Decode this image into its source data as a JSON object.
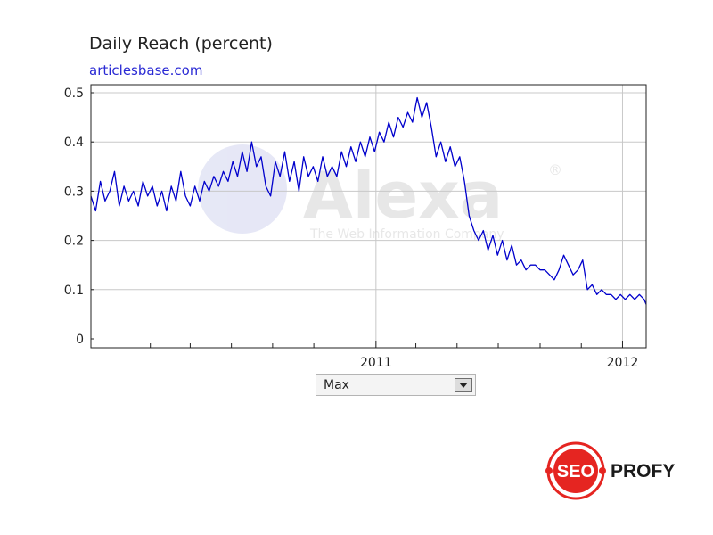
{
  "header": {
    "title": "Daily Reach (percent)",
    "site": "articlesbase.com"
  },
  "watermark": {
    "name": "Alexa",
    "reg_mark": "®",
    "tagline": "The Web Information Company"
  },
  "controls": {
    "range_value": "Max",
    "range_arrow_icon": "chevron-down-icon"
  },
  "brand": {
    "badge_text": "SEO",
    "name": "PROFY",
    "colors": {
      "red": "#e52521",
      "text": "#1a1a1a"
    }
  },
  "colors": {
    "line": "#0000cc",
    "grid": "#c8c8c8",
    "axis": "#222222"
  },
  "chart_data": {
    "type": "line",
    "title": "Daily Reach (percent)",
    "subtitle": "articlesbase.com",
    "xlabel": "",
    "ylabel": "",
    "xlim": [
      "2009-11-05",
      "2012-02-05"
    ],
    "ylim": [
      0,
      0.5
    ],
    "y_ticks": [
      0,
      0.1,
      0.2,
      0.3,
      0.4,
      0.5
    ],
    "y_tick_labels": [
      "0",
      "0.1",
      "0.2",
      "0.3",
      "0.4",
      "0.5"
    ],
    "x_major_ticks": [
      {
        "label": "2011",
        "date": "2011-01-01"
      },
      {
        "label": "2012",
        "date": "2012-01-01"
      }
    ],
    "x_minor_ticks": [
      "2010-02-01",
      "2010-04-01",
      "2010-06-01",
      "2010-08-01",
      "2010-10-01",
      "2011-03-01",
      "2011-05-01",
      "2011-07-01",
      "2011-09-01",
      "2011-11-01"
    ],
    "grid": true,
    "legend": "none",
    "series": [
      {
        "name": "",
        "points": [
          [
            "2009-11-05",
            0.29
          ],
          [
            "2009-11-12",
            0.26
          ],
          [
            "2009-11-19",
            0.32
          ],
          [
            "2009-11-26",
            0.28
          ],
          [
            "2009-12-03",
            0.3
          ],
          [
            "2009-12-10",
            0.34
          ],
          [
            "2009-12-17",
            0.27
          ],
          [
            "2009-12-24",
            0.31
          ],
          [
            "2009-12-31",
            0.28
          ],
          [
            "2010-01-07",
            0.3
          ],
          [
            "2010-01-14",
            0.27
          ],
          [
            "2010-01-21",
            0.32
          ],
          [
            "2010-01-28",
            0.29
          ],
          [
            "2010-02-04",
            0.31
          ],
          [
            "2010-02-11",
            0.27
          ],
          [
            "2010-02-18",
            0.3
          ],
          [
            "2010-02-25",
            0.26
          ],
          [
            "2010-03-04",
            0.31
          ],
          [
            "2010-03-11",
            0.28
          ],
          [
            "2010-03-18",
            0.34
          ],
          [
            "2010-03-25",
            0.29
          ],
          [
            "2010-04-01",
            0.27
          ],
          [
            "2010-04-08",
            0.31
          ],
          [
            "2010-04-15",
            0.28
          ],
          [
            "2010-04-22",
            0.32
          ],
          [
            "2010-04-29",
            0.3
          ],
          [
            "2010-05-06",
            0.33
          ],
          [
            "2010-05-13",
            0.31
          ],
          [
            "2010-05-20",
            0.34
          ],
          [
            "2010-05-27",
            0.32
          ],
          [
            "2010-06-03",
            0.36
          ],
          [
            "2010-06-10",
            0.33
          ],
          [
            "2010-06-17",
            0.38
          ],
          [
            "2010-06-24",
            0.34
          ],
          [
            "2010-07-01",
            0.4
          ],
          [
            "2010-07-08",
            0.35
          ],
          [
            "2010-07-15",
            0.37
          ],
          [
            "2010-07-22",
            0.31
          ],
          [
            "2010-07-29",
            0.29
          ],
          [
            "2010-08-05",
            0.36
          ],
          [
            "2010-08-12",
            0.33
          ],
          [
            "2010-08-19",
            0.38
          ],
          [
            "2010-08-26",
            0.32
          ],
          [
            "2010-09-02",
            0.36
          ],
          [
            "2010-09-09",
            0.3
          ],
          [
            "2010-09-16",
            0.37
          ],
          [
            "2010-09-23",
            0.33
          ],
          [
            "2010-09-30",
            0.35
          ],
          [
            "2010-10-07",
            0.32
          ],
          [
            "2010-10-14",
            0.37
          ],
          [
            "2010-10-21",
            0.33
          ],
          [
            "2010-10-28",
            0.35
          ],
          [
            "2010-11-04",
            0.33
          ],
          [
            "2010-11-11",
            0.38
          ],
          [
            "2010-11-18",
            0.35
          ],
          [
            "2010-11-25",
            0.39
          ],
          [
            "2010-12-02",
            0.36
          ],
          [
            "2010-12-09",
            0.4
          ],
          [
            "2010-12-16",
            0.37
          ],
          [
            "2010-12-23",
            0.41
          ],
          [
            "2010-12-30",
            0.38
          ],
          [
            "2011-01-06",
            0.42
          ],
          [
            "2011-01-13",
            0.4
          ],
          [
            "2011-01-20",
            0.44
          ],
          [
            "2011-01-27",
            0.41
          ],
          [
            "2011-02-03",
            0.45
          ],
          [
            "2011-02-10",
            0.43
          ],
          [
            "2011-02-17",
            0.46
          ],
          [
            "2011-02-24",
            0.44
          ],
          [
            "2011-03-03",
            0.49
          ],
          [
            "2011-03-10",
            0.45
          ],
          [
            "2011-03-17",
            0.48
          ],
          [
            "2011-03-24",
            0.43
          ],
          [
            "2011-03-31",
            0.37
          ],
          [
            "2011-04-07",
            0.4
          ],
          [
            "2011-04-14",
            0.36
          ],
          [
            "2011-04-21",
            0.39
          ],
          [
            "2011-04-28",
            0.35
          ],
          [
            "2011-05-05",
            0.37
          ],
          [
            "2011-05-12",
            0.32
          ],
          [
            "2011-05-19",
            0.25
          ],
          [
            "2011-05-26",
            0.22
          ],
          [
            "2011-06-02",
            0.2
          ],
          [
            "2011-06-09",
            0.22
          ],
          [
            "2011-06-16",
            0.18
          ],
          [
            "2011-06-23",
            0.21
          ],
          [
            "2011-06-30",
            0.17
          ],
          [
            "2011-07-07",
            0.2
          ],
          [
            "2011-07-14",
            0.16
          ],
          [
            "2011-07-21",
            0.19
          ],
          [
            "2011-07-28",
            0.15
          ],
          [
            "2011-08-04",
            0.16
          ],
          [
            "2011-08-11",
            0.14
          ],
          [
            "2011-08-18",
            0.15
          ],
          [
            "2011-08-25",
            0.15
          ],
          [
            "2011-09-01",
            0.14
          ],
          [
            "2011-09-08",
            0.14
          ],
          [
            "2011-09-15",
            0.13
          ],
          [
            "2011-09-22",
            0.12
          ],
          [
            "2011-09-29",
            0.14
          ],
          [
            "2011-10-06",
            0.17
          ],
          [
            "2011-10-13",
            0.15
          ],
          [
            "2011-10-20",
            0.13
          ],
          [
            "2011-10-27",
            0.14
          ],
          [
            "2011-11-03",
            0.16
          ],
          [
            "2011-11-10",
            0.1
          ],
          [
            "2011-11-17",
            0.11
          ],
          [
            "2011-11-24",
            0.09
          ],
          [
            "2011-12-01",
            0.1
          ],
          [
            "2011-12-08",
            0.09
          ],
          [
            "2011-12-15",
            0.09
          ],
          [
            "2011-12-22",
            0.08
          ],
          [
            "2011-12-29",
            0.09
          ],
          [
            "2012-01-05",
            0.08
          ],
          [
            "2012-01-12",
            0.09
          ],
          [
            "2012-01-19",
            0.08
          ],
          [
            "2012-01-26",
            0.09
          ],
          [
            "2012-02-02",
            0.08
          ],
          [
            "2012-02-05",
            0.07
          ]
        ]
      }
    ]
  }
}
